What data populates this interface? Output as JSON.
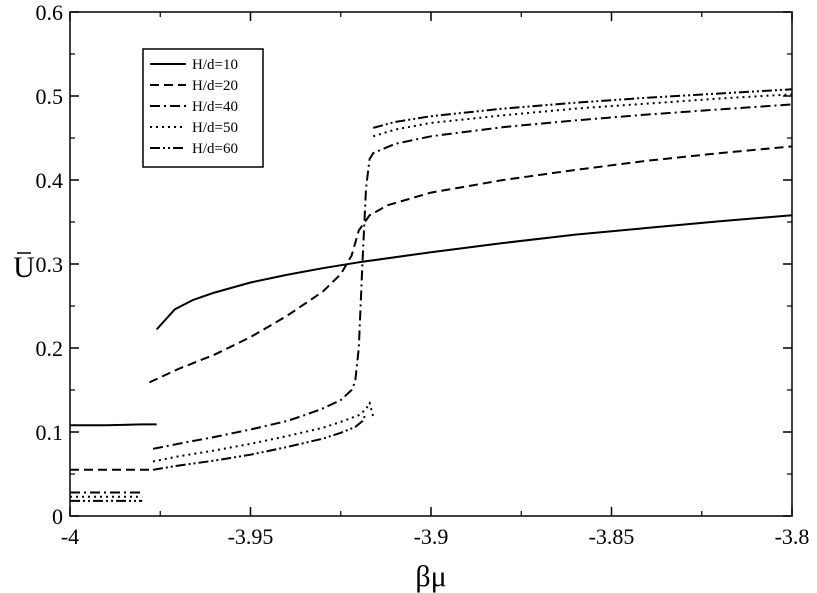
{
  "chart_data": {
    "type": "line",
    "title": "",
    "xlabel": "βμ",
    "ylabel": "U",
    "xlim": [
      -4,
      -3.8
    ],
    "ylim": [
      0,
      0.6
    ],
    "xticks": [
      -4,
      -3.95,
      -3.9,
      -3.85,
      -3.8
    ],
    "xtick_labels": [
      "-4",
      "-3.95",
      "-3.9",
      "-3.85",
      "-3.8"
    ],
    "yticks": [
      0,
      0.1,
      0.2,
      0.3,
      0.4,
      0.5,
      0.6
    ],
    "ytick_labels": [
      "0",
      "0.1",
      "0.2",
      "0.3",
      "0.4",
      "0.5",
      "0.6"
    ],
    "grid": false,
    "legend_position": "top-left",
    "series": [
      {
        "name": "H/d=10",
        "style": "solid",
        "segments": [
          [
            [
              -4.0,
              0.108
            ],
            [
              -3.99,
              0.108
            ],
            [
              -3.98,
              0.109
            ],
            [
              -3.976,
              0.109
            ]
          ],
          [
            [
              -3.976,
              0.222
            ],
            [
              -3.971,
              0.246
            ],
            [
              -3.966,
              0.257
            ],
            [
              -3.96,
              0.266
            ],
            [
              -3.95,
              0.278
            ],
            [
              -3.94,
              0.287
            ],
            [
              -3.93,
              0.295
            ],
            [
              -3.92,
              0.302
            ],
            [
              -3.9,
              0.314
            ],
            [
              -3.88,
              0.325
            ],
            [
              -3.86,
              0.335
            ],
            [
              -3.84,
              0.343
            ],
            [
              -3.82,
              0.351
            ],
            [
              -3.8,
              0.358
            ]
          ]
        ]
      },
      {
        "name": "H/d=20",
        "style": "dashed",
        "segments": [
          [
            [
              -4.0,
              0.055
            ],
            [
              -3.99,
              0.055
            ],
            [
              -3.98,
              0.055
            ],
            [
              -3.978,
              0.055
            ]
          ],
          [
            [
              -3.978,
              0.159
            ],
            [
              -3.97,
              0.175
            ],
            [
              -3.96,
              0.192
            ],
            [
              -3.95,
              0.213
            ],
            [
              -3.94,
              0.238
            ],
            [
              -3.93,
              0.267
            ],
            [
              -3.925,
              0.288
            ],
            [
              -3.922,
              0.31
            ],
            [
              -3.92,
              0.34
            ],
            [
              -3.917,
              0.358
            ],
            [
              -3.912,
              0.37
            ],
            [
              -3.9,
              0.385
            ],
            [
              -3.88,
              0.4
            ],
            [
              -3.86,
              0.412
            ],
            [
              -3.84,
              0.423
            ],
            [
              -3.82,
              0.432
            ],
            [
              -3.8,
              0.44
            ]
          ]
        ]
      },
      {
        "name": "H/d=40",
        "style": "dashdot",
        "segments": [
          [
            [
              -4.0,
              0.028
            ],
            [
              -3.99,
              0.028
            ],
            [
              -3.98,
              0.028
            ]
          ],
          [
            [
              -3.977,
              0.08
            ],
            [
              -3.97,
              0.086
            ],
            [
              -3.96,
              0.094
            ],
            [
              -3.95,
              0.103
            ],
            [
              -3.94,
              0.113
            ],
            [
              -3.935,
              0.12
            ],
            [
              -3.93,
              0.128
            ],
            [
              -3.925,
              0.138
            ],
            [
              -3.922,
              0.15
            ],
            [
              -3.921,
              0.16
            ],
            [
              -3.92,
              0.2
            ],
            [
              -3.919,
              0.3
            ],
            [
              -3.918,
              0.39
            ],
            [
              -3.917,
              0.425
            ],
            [
              -3.916,
              0.432
            ],
            [
              -3.91,
              0.443
            ],
            [
              -3.9,
              0.452
            ],
            [
              -3.88,
              0.463
            ],
            [
              -3.86,
              0.471
            ],
            [
              -3.84,
              0.478
            ],
            [
              -3.82,
              0.484
            ],
            [
              -3.8,
              0.49
            ]
          ]
        ]
      },
      {
        "name": "H/d=50",
        "style": "dotted",
        "segments": [
          [
            [
              -4.0,
              0.023
            ],
            [
              -3.99,
              0.023
            ],
            [
              -3.98,
              0.023
            ]
          ],
          [
            [
              -3.977,
              0.065
            ],
            [
              -3.97,
              0.071
            ],
            [
              -3.96,
              0.078
            ],
            [
              -3.95,
              0.086
            ],
            [
              -3.94,
              0.095
            ],
            [
              -3.93,
              0.105
            ],
            [
              -3.925,
              0.112
            ],
            [
              -3.92,
              0.12
            ],
            [
              -3.918,
              0.127
            ],
            [
              -3.917,
              0.135
            ],
            [
              -3.916,
              0.118
            ]
          ],
          [
            [
              -3.916,
              0.452
            ],
            [
              -3.91,
              0.46
            ],
            [
              -3.9,
              0.468
            ],
            [
              -3.88,
              0.477
            ],
            [
              -3.86,
              0.485
            ],
            [
              -3.84,
              0.491
            ],
            [
              -3.82,
              0.497
            ],
            [
              -3.8,
              0.502
            ]
          ]
        ]
      },
      {
        "name": "H/d=60",
        "style": "dashdotdot",
        "segments": [
          [
            [
              -4.0,
              0.018
            ],
            [
              -3.99,
              0.018
            ],
            [
              -3.98,
              0.018
            ]
          ],
          [
            [
              -3.977,
              0.055
            ],
            [
              -3.97,
              0.06
            ],
            [
              -3.96,
              0.066
            ],
            [
              -3.95,
              0.073
            ],
            [
              -3.94,
              0.082
            ],
            [
              -3.93,
              0.092
            ],
            [
              -3.925,
              0.099
            ],
            [
              -3.921,
              0.106
            ],
            [
              -3.919,
              0.113
            ],
            [
              -3.918,
              0.122
            ]
          ],
          [
            [
              -3.916,
              0.462
            ],
            [
              -3.91,
              0.469
            ],
            [
              -3.9,
              0.476
            ],
            [
              -3.88,
              0.485
            ],
            [
              -3.86,
              0.492
            ],
            [
              -3.84,
              0.498
            ],
            [
              -3.82,
              0.503
            ],
            [
              -3.8,
              0.508
            ]
          ]
        ]
      }
    ]
  }
}
